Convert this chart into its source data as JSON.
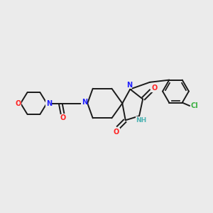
{
  "background_color": "#ebebeb",
  "bond_color": "#1a1a1a",
  "N_color": "#2020ff",
  "O_color": "#ff2020",
  "Cl_color": "#3cb043",
  "NH_color": "#4db3b3",
  "figsize": [
    3.0,
    3.0
  ],
  "dpi": 100,
  "xlim": [
    0,
    10
  ],
  "ylim": [
    0,
    10
  ]
}
